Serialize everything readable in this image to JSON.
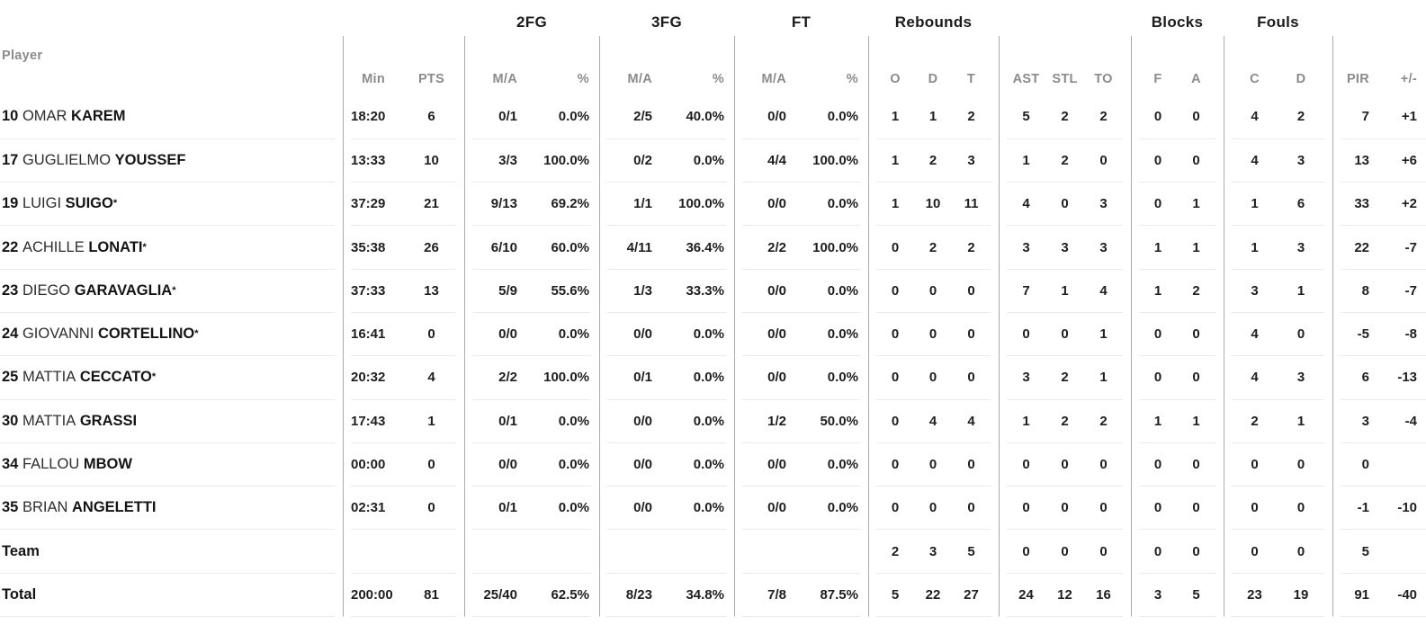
{
  "colors": {
    "background": "#ffffff",
    "text_primary": "#1e1e1e",
    "text_muted": "#8b8b8b",
    "divider_vertical": "#ababab",
    "divider_horizontal": "#eaeaea"
  },
  "header": {
    "groups": {
      "fg2": "2FG",
      "fg3": "3FG",
      "ft": "FT",
      "rebounds": "Rebounds",
      "blocks": "Blocks",
      "fouls": "Fouls"
    },
    "sub": {
      "player": "Player",
      "min": "Min",
      "pts": "PTS",
      "ma": "M/A",
      "pct": "%",
      "o": "O",
      "d": "D",
      "t": "T",
      "ast": "AST",
      "stl": "STL",
      "to": "TO",
      "f": "F",
      "a": "A",
      "c": "C",
      "pir": "PIR",
      "plusminus": "+/-"
    }
  },
  "rows": [
    {
      "type": "player",
      "num": "10",
      "first": "OMAR",
      "last": "KAREM",
      "star": "",
      "min": "18:20",
      "pts": "6",
      "fg2_ma": "0/1",
      "fg2_pct": "0.0%",
      "fg3_ma": "2/5",
      "fg3_pct": "40.0%",
      "ft_ma": "0/0",
      "ft_pct": "0.0%",
      "reb_o": "1",
      "reb_d": "1",
      "reb_t": "2",
      "ast": "5",
      "stl": "2",
      "to": "2",
      "blk_f": "0",
      "blk_a": "0",
      "foul_c": "4",
      "foul_d": "2",
      "pir": "7",
      "pm": "+1"
    },
    {
      "type": "player",
      "num": "17",
      "first": "GUGLIELMO",
      "last": "YOUSSEF",
      "star": "",
      "min": "13:33",
      "pts": "10",
      "fg2_ma": "3/3",
      "fg2_pct": "100.0%",
      "fg3_ma": "0/2",
      "fg3_pct": "0.0%",
      "ft_ma": "4/4",
      "ft_pct": "100.0%",
      "reb_o": "1",
      "reb_d": "2",
      "reb_t": "3",
      "ast": "1",
      "stl": "2",
      "to": "0",
      "blk_f": "0",
      "blk_a": "0",
      "foul_c": "4",
      "foul_d": "3",
      "pir": "13",
      "pm": "+6"
    },
    {
      "type": "player",
      "num": "19",
      "first": "LUIGI",
      "last": "SUIGO",
      "star": "*",
      "min": "37:29",
      "pts": "21",
      "fg2_ma": "9/13",
      "fg2_pct": "69.2%",
      "fg3_ma": "1/1",
      "fg3_pct": "100.0%",
      "ft_ma": "0/0",
      "ft_pct": "0.0%",
      "reb_o": "1",
      "reb_d": "10",
      "reb_t": "11",
      "ast": "4",
      "stl": "0",
      "to": "3",
      "blk_f": "0",
      "blk_a": "1",
      "foul_c": "1",
      "foul_d": "6",
      "pir": "33",
      "pm": "+2"
    },
    {
      "type": "player",
      "num": "22",
      "first": "ACHILLE",
      "last": "LONATI",
      "star": "*",
      "min": "35:38",
      "pts": "26",
      "fg2_ma": "6/10",
      "fg2_pct": "60.0%",
      "fg3_ma": "4/11",
      "fg3_pct": "36.4%",
      "ft_ma": "2/2",
      "ft_pct": "100.0%",
      "reb_o": "0",
      "reb_d": "2",
      "reb_t": "2",
      "ast": "3",
      "stl": "3",
      "to": "3",
      "blk_f": "1",
      "blk_a": "1",
      "foul_c": "1",
      "foul_d": "3",
      "pir": "22",
      "pm": "-7"
    },
    {
      "type": "player",
      "num": "23",
      "first": "DIEGO",
      "last": "GARAVAGLIA",
      "star": "*",
      "min": "37:33",
      "pts": "13",
      "fg2_ma": "5/9",
      "fg2_pct": "55.6%",
      "fg3_ma": "1/3",
      "fg3_pct": "33.3%",
      "ft_ma": "0/0",
      "ft_pct": "0.0%",
      "reb_o": "0",
      "reb_d": "0",
      "reb_t": "0",
      "ast": "7",
      "stl": "1",
      "to": "4",
      "blk_f": "1",
      "blk_a": "2",
      "foul_c": "3",
      "foul_d": "1",
      "pir": "8",
      "pm": "-7"
    },
    {
      "type": "player",
      "num": "24",
      "first": "GIOVANNI",
      "last": "CORTELLINO",
      "star": "*",
      "min": "16:41",
      "pts": "0",
      "fg2_ma": "0/0",
      "fg2_pct": "0.0%",
      "fg3_ma": "0/0",
      "fg3_pct": "0.0%",
      "ft_ma": "0/0",
      "ft_pct": "0.0%",
      "reb_o": "0",
      "reb_d": "0",
      "reb_t": "0",
      "ast": "0",
      "stl": "0",
      "to": "1",
      "blk_f": "0",
      "blk_a": "0",
      "foul_c": "4",
      "foul_d": "0",
      "pir": "-5",
      "pm": "-8"
    },
    {
      "type": "player",
      "num": "25",
      "first": "MATTIA",
      "last": "CECCATO",
      "star": "*",
      "min": "20:32",
      "pts": "4",
      "fg2_ma": "2/2",
      "fg2_pct": "100.0%",
      "fg3_ma": "0/1",
      "fg3_pct": "0.0%",
      "ft_ma": "0/0",
      "ft_pct": "0.0%",
      "reb_o": "0",
      "reb_d": "0",
      "reb_t": "0",
      "ast": "3",
      "stl": "2",
      "to": "1",
      "blk_f": "0",
      "blk_a": "0",
      "foul_c": "4",
      "foul_d": "3",
      "pir": "6",
      "pm": "-13"
    },
    {
      "type": "player",
      "num": "30",
      "first": "MATTIA",
      "last": "GRASSI",
      "star": "",
      "min": "17:43",
      "pts": "1",
      "fg2_ma": "0/1",
      "fg2_pct": "0.0%",
      "fg3_ma": "0/0",
      "fg3_pct": "0.0%",
      "ft_ma": "1/2",
      "ft_pct": "50.0%",
      "reb_o": "0",
      "reb_d": "4",
      "reb_t": "4",
      "ast": "1",
      "stl": "2",
      "to": "2",
      "blk_f": "1",
      "blk_a": "1",
      "foul_c": "2",
      "foul_d": "1",
      "pir": "3",
      "pm": "-4"
    },
    {
      "type": "player",
      "num": "34",
      "first": "FALLOU",
      "last": "MBOW",
      "star": "",
      "min": "00:00",
      "pts": "0",
      "fg2_ma": "0/0",
      "fg2_pct": "0.0%",
      "fg3_ma": "0/0",
      "fg3_pct": "0.0%",
      "ft_ma": "0/0",
      "ft_pct": "0.0%",
      "reb_o": "0",
      "reb_d": "0",
      "reb_t": "0",
      "ast": "0",
      "stl": "0",
      "to": "0",
      "blk_f": "0",
      "blk_a": "0",
      "foul_c": "0",
      "foul_d": "0",
      "pir": "0",
      "pm": ""
    },
    {
      "type": "player",
      "num": "35",
      "first": "BRIAN",
      "last": "ANGELETTI",
      "star": "",
      "min": "02:31",
      "pts": "0",
      "fg2_ma": "0/1",
      "fg2_pct": "0.0%",
      "fg3_ma": "0/0",
      "fg3_pct": "0.0%",
      "ft_ma": "0/0",
      "ft_pct": "0.0%",
      "reb_o": "0",
      "reb_d": "0",
      "reb_t": "0",
      "ast": "0",
      "stl": "0",
      "to": "0",
      "blk_f": "0",
      "blk_a": "0",
      "foul_c": "0",
      "foul_d": "0",
      "pir": "-1",
      "pm": "-10"
    },
    {
      "type": "summary",
      "label": "Team",
      "min": "",
      "pts": "",
      "fg2_ma": "",
      "fg2_pct": "",
      "fg3_ma": "",
      "fg3_pct": "",
      "ft_ma": "",
      "ft_pct": "",
      "reb_o": "2",
      "reb_d": "3",
      "reb_t": "5",
      "ast": "0",
      "stl": "0",
      "to": "0",
      "blk_f": "0",
      "blk_a": "0",
      "foul_c": "0",
      "foul_d": "0",
      "pir": "5",
      "pm": ""
    },
    {
      "type": "summary",
      "label": "Total",
      "min": "200:00",
      "pts": "81",
      "fg2_ma": "25/40",
      "fg2_pct": "62.5%",
      "fg3_ma": "8/23",
      "fg3_pct": "34.8%",
      "ft_ma": "7/8",
      "ft_pct": "87.5%",
      "reb_o": "5",
      "reb_d": "22",
      "reb_t": "27",
      "ast": "24",
      "stl": "12",
      "to": "16",
      "blk_f": "3",
      "blk_a": "5",
      "foul_c": "23",
      "foul_d": "19",
      "pir": "91",
      "pm": "-40"
    }
  ]
}
